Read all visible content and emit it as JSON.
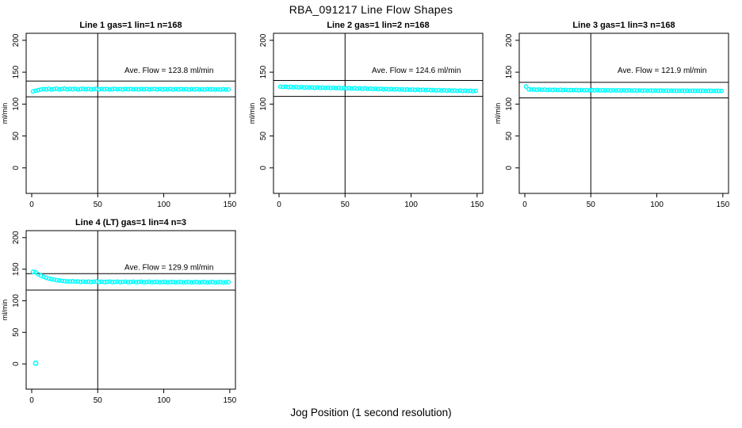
{
  "figure": {
    "title": "RBA_091217  Line Flow Shapes",
    "xlabel_shared": "Jog Position (1 second resolution)",
    "background": "#ffffff",
    "point_color": "#00ffff",
    "line_color": "#000000",
    "marker": "open-circle"
  },
  "chart_data": [
    {
      "type": "scatter",
      "title": "Line 1 gas=1 lin=1 n=168",
      "annotation": "Ave. Flow =  123.8  ml/min",
      "ave_flow": 123.8,
      "n": 168,
      "ylabel": "ml/min",
      "x_ticks": [
        0,
        50,
        100,
        150
      ],
      "y_ticks": [
        0,
        50,
        100,
        150,
        200
      ],
      "xlim": [
        -4.2,
        154.3
      ],
      "ylim": [
        -40,
        211
      ],
      "vline_x": 50,
      "ref_lines": [
        136.2,
        111.4
      ],
      "annotation_pos": [
        104,
        149
      ],
      "x_start": 1,
      "x_step": 2,
      "y_values": [
        119.8,
        121.0,
        122.0,
        122.8,
        123.6,
        123.2,
        124.0,
        122.9,
        123.5,
        124.1,
        123.0,
        123.7,
        124.2,
        123.1,
        123.8,
        123.3,
        124.0,
        122.9,
        123.6,
        124.1,
        123.2,
        123.8,
        123.0,
        123.5,
        124.0,
        123.1,
        123.7,
        123.3,
        123.9,
        122.9,
        123.5,
        124.0,
        123.2,
        123.6,
        123.0,
        123.8,
        123.3,
        123.9,
        123.1,
        123.5,
        123.0,
        123.7,
        123.2,
        123.8,
        123.0,
        123.4,
        123.9,
        123.1,
        123.6,
        123.0,
        123.5,
        123.2,
        123.7,
        122.9,
        123.4,
        123.0,
        123.6,
        123.1,
        123.5,
        122.8,
        123.3,
        123.0,
        123.5,
        122.9,
        123.2,
        122.8,
        123.4,
        123.0,
        123.3,
        122.8,
        123.1,
        122.7,
        123.2,
        122.8,
        123.0
      ],
      "extra_points": []
    },
    {
      "type": "scatter",
      "title": "Line 2 gas=1 lin=2 n=168",
      "annotation": "Ave. Flow =  124.6  ml/min",
      "ave_flow": 124.6,
      "n": 168,
      "ylabel": "ml/min",
      "x_ticks": [
        0,
        50,
        100,
        150
      ],
      "y_ticks": [
        0,
        50,
        100,
        150,
        200
      ],
      "xlim": [
        -4.2,
        154.3
      ],
      "ylim": [
        -40,
        211
      ],
      "vline_x": 50,
      "ref_lines": [
        137.1,
        112.1
      ],
      "annotation_pos": [
        104,
        149
      ],
      "x_start": 1,
      "x_step": 2,
      "y_values": [
        127.4,
        127.0,
        127.3,
        126.6,
        127.1,
        126.4,
        126.9,
        126.2,
        126.7,
        126.0,
        126.5,
        125.9,
        126.3,
        125.7,
        126.1,
        125.5,
        125.9,
        125.3,
        125.8,
        125.1,
        125.6,
        125.0,
        125.4,
        124.8,
        125.2,
        124.6,
        125.0,
        124.4,
        124.9,
        124.2,
        124.7,
        124.0,
        124.5,
        123.9,
        124.3,
        123.7,
        124.1,
        123.5,
        123.9,
        123.3,
        123.8,
        123.1,
        123.6,
        123.0,
        123.4,
        122.8,
        123.2,
        122.6,
        123.0,
        122.4,
        122.9,
        122.2,
        122.7,
        122.0,
        122.5,
        121.9,
        122.3,
        121.7,
        122.1,
        121.5,
        122.0,
        121.3,
        121.8,
        121.1,
        121.6,
        121.0,
        121.4,
        120.8,
        121.2,
        120.6,
        121.0,
        120.5,
        120.9,
        120.4,
        120.7
      ],
      "extra_points": []
    },
    {
      "type": "scatter",
      "title": "Line 3 gas=1 lin=3 n=168",
      "annotation": "Ave. Flow =  121.9  ml/min",
      "ave_flow": 121.9,
      "n": 168,
      "ylabel": "ml/min",
      "x_ticks": [
        0,
        50,
        100,
        150
      ],
      "y_ticks": [
        0,
        50,
        100,
        150,
        200
      ],
      "xlim": [
        -4.2,
        154.3
      ],
      "ylim": [
        -40,
        211
      ],
      "vline_x": 50,
      "ref_lines": [
        134.1,
        109.7
      ],
      "annotation_pos": [
        104,
        149
      ],
      "x_start": 1,
      "x_step": 2,
      "y_values": [
        127.5,
        123.2,
        122.8,
        123.0,
        122.5,
        122.9,
        122.3,
        122.7,
        122.2,
        122.6,
        122.1,
        122.5,
        122.0,
        122.4,
        121.9,
        122.3,
        121.8,
        122.2,
        121.8,
        122.1,
        121.7,
        122.0,
        121.7,
        122.0,
        121.6,
        121.9,
        121.6,
        121.9,
        121.5,
        121.8,
        121.5,
        121.8,
        121.4,
        121.7,
        121.4,
        121.7,
        121.3,
        121.6,
        121.3,
        121.6,
        121.2,
        121.5,
        121.2,
        121.5,
        121.1,
        121.4,
        121.1,
        121.4,
        121.0,
        121.3,
        121.0,
        121.3,
        121.0,
        121.2,
        120.9,
        121.2,
        120.9,
        121.1,
        120.9,
        121.1,
        120.8,
        121.0,
        120.8,
        121.0,
        120.8,
        121.0,
        120.7,
        120.9,
        120.7,
        120.9,
        120.7,
        120.8,
        120.6,
        120.8,
        120.6
      ],
      "extra_points": []
    },
    {
      "type": "scatter",
      "title": "Line 4 (LT) gas=1 lin=4 n=3",
      "annotation": "Ave. Flow =  129.9  ml/min",
      "ave_flow": 129.9,
      "n": 3,
      "ylabel": "ml/min",
      "x_ticks": [
        0,
        50,
        100,
        150
      ],
      "y_ticks": [
        0,
        50,
        100,
        150,
        200
      ],
      "xlim": [
        -4.2,
        154.3
      ],
      "ylim": [
        -40,
        211
      ],
      "vline_x": 50,
      "ref_lines": [
        142.9,
        116.9
      ],
      "annotation_pos": [
        104,
        149
      ],
      "x_start": 1,
      "x_step": 2,
      "y_values": [
        145.8,
        144.9,
        142.0,
        139.8,
        137.9,
        136.3,
        135.2,
        134.1,
        133.3,
        132.6,
        132.0,
        131.5,
        131.1,
        130.8,
        130.5,
        130.9,
        130.2,
        130.6,
        129.9,
        130.4,
        129.8,
        130.3,
        129.7,
        130.2,
        130.6,
        129.6,
        130.1,
        129.5,
        130.0,
        130.4,
        129.5,
        129.9,
        130.3,
        129.4,
        129.9,
        130.2,
        129.4,
        129.8,
        130.2,
        129.3,
        129.8,
        130.1,
        129.3,
        129.7,
        130.1,
        129.3,
        129.7,
        130.0,
        129.2,
        129.7,
        130.0,
        129.2,
        129.6,
        129.9,
        129.2,
        129.6,
        129.9,
        129.1,
        129.5,
        129.9,
        129.1,
        129.5,
        129.8,
        129.1,
        129.5,
        129.8,
        129.0,
        129.4,
        129.8,
        129.0,
        129.4,
        129.7,
        129.0,
        129.4,
        129.7
      ],
      "extra_points": [
        [
          3,
          1.0
        ]
      ]
    }
  ]
}
